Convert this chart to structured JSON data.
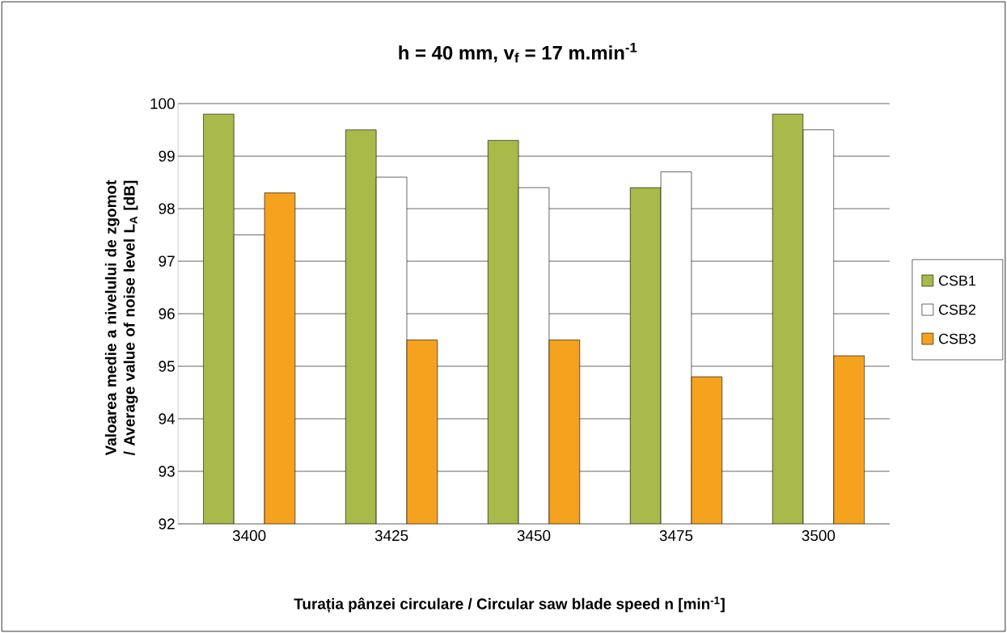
{
  "chart_data": {
    "type": "bar",
    "title": "h = 40 mm, v$_{f}$ = 17 m.min$^{-1}$",
    "xlabel": "Turația pânzei circulare / Circular saw blade speed n [min$^{-1}$]",
    "ylabel": "Valoarea medie a nivelului de zgomot / Average value of noise level L$_{A}$ [dB]",
    "categories": [
      "3400",
      "3425",
      "3450",
      "3475",
      "3500"
    ],
    "series": [
      {
        "name": "CSB1",
        "color": "#a9b94a",
        "values": [
          99.8,
          99.5,
          99.3,
          98.4,
          99.8
        ]
      },
      {
        "name": "CSB2",
        "color": "#ffffff",
        "values": [
          97.5,
          98.6,
          98.4,
          98.7,
          99.5
        ]
      },
      {
        "name": "CSB3",
        "color": "#f5a21e",
        "values": [
          98.3,
          95.5,
          95.5,
          94.8,
          95.2
        ]
      }
    ],
    "ylim": [
      92,
      100
    ],
    "yticks": [
      92,
      93,
      94,
      95,
      96,
      97,
      98,
      99,
      100
    ],
    "grid": "y",
    "legend": "right"
  }
}
